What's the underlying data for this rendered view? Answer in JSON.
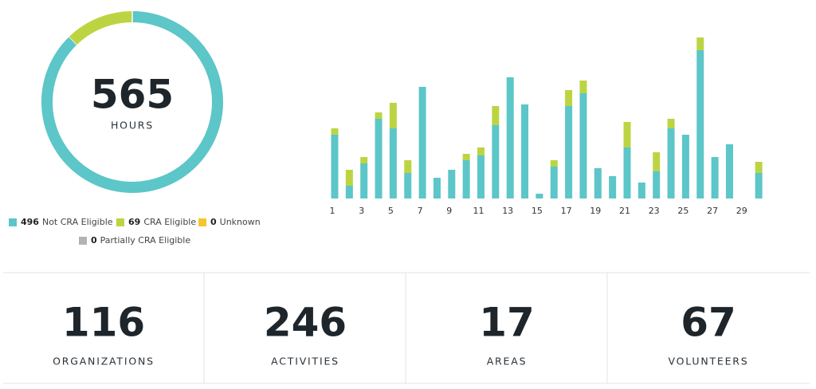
{
  "chart_data": [
    {
      "type": "donut",
      "total": 565,
      "total_label": "HOURS",
      "categories": [
        "Not CRA Eligible",
        "CRA Eligible",
        "Unknown",
        "Partially CRA Eligible"
      ],
      "values": [
        496,
        69,
        0,
        0
      ],
      "colors": [
        "#5cc6c8",
        "#bdd442",
        "#f5c62d",
        "#b3b3b3"
      ]
    },
    {
      "type": "stacked_bar",
      "categories": [
        "1",
        null,
        "3",
        null,
        "5",
        null,
        "7",
        null,
        "9",
        null,
        "11",
        null,
        "13",
        null,
        "15",
        null,
        "17",
        null,
        "19",
        null,
        "21",
        null,
        "23",
        null,
        "25",
        null,
        "27",
        null,
        "29",
        null
      ],
      "series": [
        {
          "name": "Not CRA Eligible",
          "color": "#5cc6c8",
          "values": [
            20,
            4,
            11,
            25,
            22,
            8,
            35,
            6.5,
            9,
            12,
            13.5,
            23,
            38,
            29.5,
            1.5,
            10,
            29,
            33,
            9.5,
            7,
            16,
            5,
            8.5,
            22,
            20,
            46.5,
            13,
            17,
            0,
            8
          ]
        },
        {
          "name": "CRA Eligible",
          "color": "#bdd442",
          "values": [
            2,
            5,
            2,
            2,
            8,
            4,
            0,
            0,
            0,
            2,
            2.5,
            6,
            0,
            0,
            0,
            2,
            5,
            4,
            0,
            0,
            8,
            0,
            6,
            3,
            0,
            4,
            0,
            0,
            0,
            3.5
          ]
        }
      ],
      "ylim": [
        0,
        50
      ]
    }
  ],
  "stats": [
    {
      "value": "116",
      "label": "ORGANIZATIONS"
    },
    {
      "value": "246",
      "label": "ACTIVITIES"
    },
    {
      "value": "17",
      "label": "AREAS"
    },
    {
      "value": "67",
      "label": "VOLUNTEERS"
    }
  ]
}
